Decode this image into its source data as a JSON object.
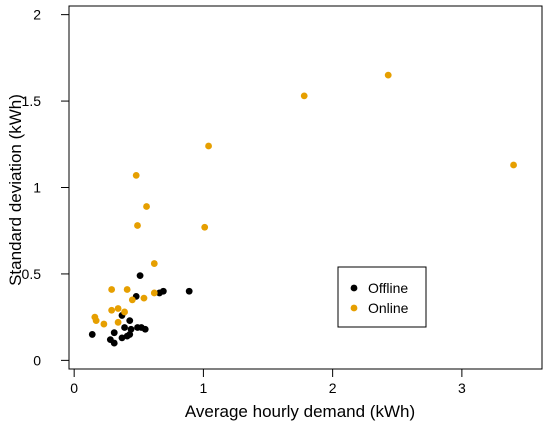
{
  "chart_data": {
    "type": "scatter",
    "xlabel": "Average hourly demand (kWh)",
    "ylabel": "Standard deviation (kWh)",
    "xlim": [
      -0.04,
      3.62
    ],
    "ylim": [
      -0.05,
      2.05
    ],
    "x_ticks": [
      0,
      1,
      2,
      3
    ],
    "y_ticks": [
      0,
      0.5,
      1,
      1.5,
      2
    ],
    "x_tick_labels": [
      "0",
      "1",
      "2",
      "3"
    ],
    "y_tick_labels": [
      "0",
      "0.5",
      "1",
      "1.5",
      "2"
    ],
    "grid": false,
    "legend_position": "lower-right",
    "series": [
      {
        "name": "Offline",
        "color": "#000000",
        "points": [
          {
            "x": 0.14,
            "y": 0.15
          },
          {
            "x": 0.28,
            "y": 0.12
          },
          {
            "x": 0.31,
            "y": 0.1
          },
          {
            "x": 0.31,
            "y": 0.16
          },
          {
            "x": 0.37,
            "y": 0.26
          },
          {
            "x": 0.37,
            "y": 0.13
          },
          {
            "x": 0.39,
            "y": 0.19
          },
          {
            "x": 0.41,
            "y": 0.14
          },
          {
            "x": 0.43,
            "y": 0.23
          },
          {
            "x": 0.44,
            "y": 0.18
          },
          {
            "x": 0.43,
            "y": 0.15
          },
          {
            "x": 0.48,
            "y": 0.37
          },
          {
            "x": 0.49,
            "y": 0.19
          },
          {
            "x": 0.51,
            "y": 0.49
          },
          {
            "x": 0.52,
            "y": 0.19
          },
          {
            "x": 0.55,
            "y": 0.18
          },
          {
            "x": 0.66,
            "y": 0.39
          },
          {
            "x": 0.69,
            "y": 0.4
          },
          {
            "x": 0.89,
            "y": 0.4
          }
        ]
      },
      {
        "name": "Online",
        "color": "#E69F00",
        "points": [
          {
            "x": 0.16,
            "y": 0.25
          },
          {
            "x": 0.17,
            "y": 0.23
          },
          {
            "x": 0.23,
            "y": 0.21
          },
          {
            "x": 0.29,
            "y": 0.29
          },
          {
            "x": 0.29,
            "y": 0.41
          },
          {
            "x": 0.34,
            "y": 0.22
          },
          {
            "x": 0.34,
            "y": 0.3
          },
          {
            "x": 0.39,
            "y": 0.28
          },
          {
            "x": 0.41,
            "y": 0.41
          },
          {
            "x": 0.45,
            "y": 0.35
          },
          {
            "x": 0.48,
            "y": 1.07
          },
          {
            "x": 0.49,
            "y": 0.78
          },
          {
            "x": 0.54,
            "y": 0.36
          },
          {
            "x": 0.56,
            "y": 0.89
          },
          {
            "x": 0.62,
            "y": 0.56
          },
          {
            "x": 0.62,
            "y": 0.39
          },
          {
            "x": 1.01,
            "y": 0.77
          },
          {
            "x": 1.04,
            "y": 1.24
          },
          {
            "x": 1.78,
            "y": 1.53
          },
          {
            "x": 2.43,
            "y": 1.65
          },
          {
            "x": 3.4,
            "y": 1.13
          }
        ]
      }
    ]
  }
}
